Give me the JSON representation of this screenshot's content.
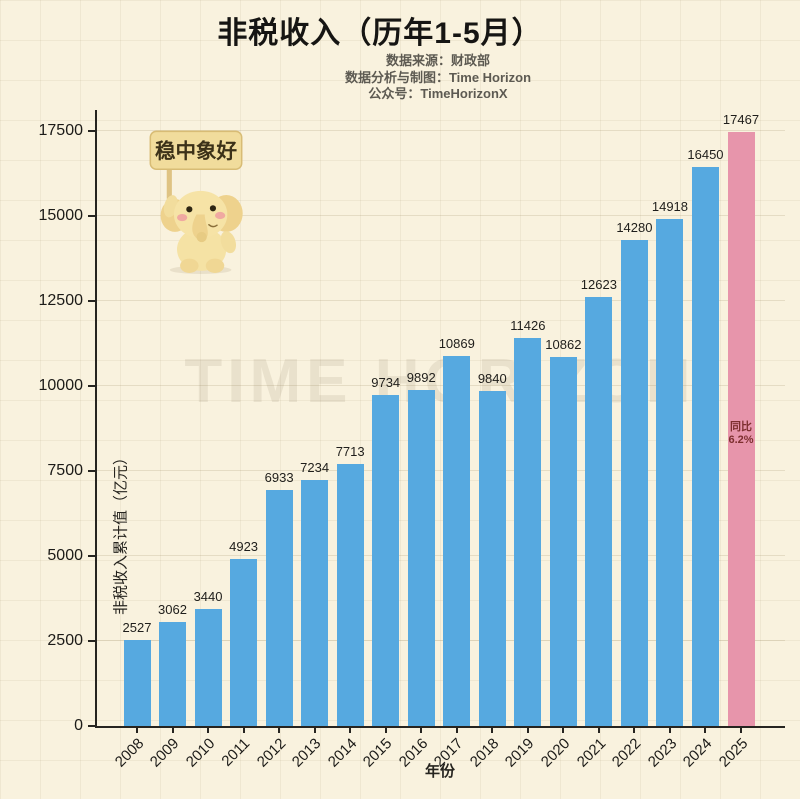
{
  "header": {
    "title": "非税收入（历年1-5月）",
    "source_line": "数据来源：财政部",
    "credit_line": "数据分析与制图：Time Horizon",
    "account_line": "公众号：TimeHorizonX"
  },
  "mascot": {
    "sign_text": "稳中象好"
  },
  "watermark": "TIME HORIZON",
  "chart_data": {
    "type": "bar",
    "title": "非税收入（历年1-5月）",
    "xlabel": "年份",
    "ylabel": "非税收入累计值（亿元）",
    "categories": [
      "2008",
      "2009",
      "2010",
      "2011",
      "2012",
      "2013",
      "2014",
      "2015",
      "2016",
      "2017",
      "2018",
      "2019",
      "2020",
      "2021",
      "2022",
      "2023",
      "2024",
      "2025"
    ],
    "values": [
      2527,
      3062,
      3440,
      4923,
      6933,
      7234,
      7713,
      9734,
      9892,
      10869,
      9840,
      11426,
      10862,
      12623,
      14280,
      14918,
      16450,
      17467
    ],
    "yticks": [
      0,
      2500,
      5000,
      7500,
      10000,
      12500,
      15000,
      17500
    ],
    "ylim": [
      0,
      18200
    ],
    "grid": true,
    "legend": "none",
    "bar_color": "#56a9e0",
    "highlight_color": "#e795ab",
    "highlight_index": 17,
    "highlight_annotation": {
      "label": "同比",
      "value": "6.2%"
    },
    "annotation_color": "#7d2f2f",
    "background_color": "#f9f2de"
  }
}
